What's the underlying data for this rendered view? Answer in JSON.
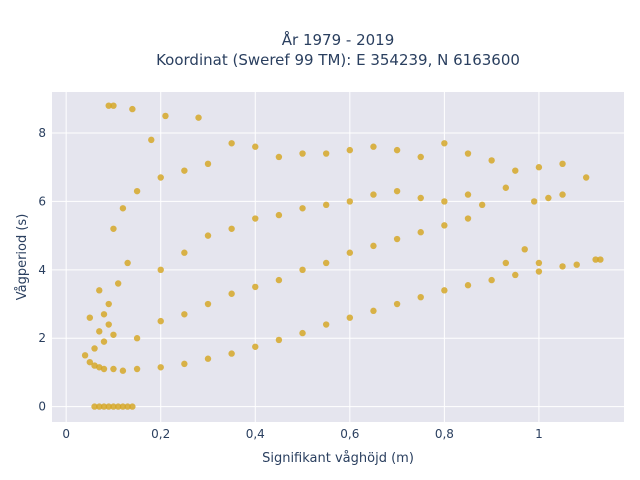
{
  "chart_data": {
    "type": "scatter",
    "title_line1": "År 1979 - 2019",
    "title_line2": "Koordinat (Sweref 99 TM): E 354239, N 6163600",
    "xlabel": "Signifikant våghöjd (m)",
    "ylabel": "Vågperiod (s)",
    "xlim": [
      -0.03,
      1.18
    ],
    "ylim": [
      -0.45,
      9.2
    ],
    "x_ticks": [
      0,
      0.2,
      0.4,
      0.6,
      0.8,
      1
    ],
    "x_tick_labels": [
      "0",
      "0,2",
      "0,4",
      "0,6",
      "0,8",
      "1"
    ],
    "y_ticks": [
      0,
      2,
      4,
      6,
      8
    ],
    "y_tick_labels": [
      "0",
      "2",
      "4",
      "6",
      "8"
    ],
    "grid": true,
    "marker_color": "#d4a521",
    "plot_bgcolor": "#e5e5ee",
    "series": [
      {
        "values_xy": [
          [
            0.04,
            1.5
          ],
          [
            0.05,
            1.3
          ],
          [
            0.06,
            1.2
          ],
          [
            0.07,
            1.15
          ],
          [
            0.08,
            1.1
          ],
          [
            0.1,
            1.1
          ],
          [
            0.12,
            1.05
          ],
          [
            0.15,
            1.1
          ],
          [
            0.2,
            1.15
          ],
          [
            0.25,
            1.25
          ],
          [
            0.3,
            1.4
          ],
          [
            0.35,
            1.55
          ],
          [
            0.4,
            1.75
          ],
          [
            0.45,
            1.95
          ],
          [
            0.5,
            2.15
          ],
          [
            0.55,
            2.4
          ],
          [
            0.6,
            2.6
          ],
          [
            0.65,
            2.8
          ],
          [
            0.7,
            3.0
          ],
          [
            0.75,
            3.2
          ],
          [
            0.8,
            3.4
          ],
          [
            0.85,
            3.55
          ],
          [
            0.9,
            3.7
          ],
          [
            0.95,
            3.85
          ],
          [
            1.0,
            3.95
          ],
          [
            1.05,
            4.1
          ],
          [
            1.08,
            4.15
          ],
          [
            1.12,
            4.3
          ],
          [
            1.13,
            4.3
          ],
          [
            0.06,
            0.0
          ],
          [
            0.07,
            0.0
          ],
          [
            0.08,
            0.0
          ],
          [
            0.09,
            0.0
          ],
          [
            0.1,
            0.0
          ],
          [
            0.11,
            0.0
          ],
          [
            0.12,
            0.0
          ],
          [
            0.13,
            0.0
          ],
          [
            0.14,
            0.0
          ],
          [
            0.09,
            8.8
          ],
          [
            0.1,
            8.8
          ],
          [
            0.14,
            8.7
          ],
          [
            0.21,
            8.5
          ],
          [
            0.28,
            8.45
          ],
          [
            0.18,
            7.8
          ],
          [
            0.35,
            7.7
          ],
          [
            0.4,
            7.6
          ],
          [
            0.45,
            7.3
          ],
          [
            0.5,
            7.4
          ],
          [
            0.55,
            7.4
          ],
          [
            0.6,
            7.5
          ],
          [
            0.65,
            7.6
          ],
          [
            0.7,
            7.5
          ],
          [
            0.75,
            7.3
          ],
          [
            0.8,
            7.7
          ],
          [
            0.85,
            7.4
          ],
          [
            0.9,
            7.2
          ],
          [
            0.95,
            6.9
          ],
          [
            1.0,
            7.0
          ],
          [
            1.05,
            7.1
          ],
          [
            1.1,
            6.7
          ],
          [
            1.02,
            6.1
          ],
          [
            1.05,
            6.2
          ],
          [
            0.99,
            6.0
          ],
          [
            0.93,
            6.4
          ],
          [
            0.88,
            5.9
          ],
          [
            0.97,
            4.6
          ],
          [
            0.93,
            4.2
          ],
          [
            1.0,
            4.2
          ],
          [
            0.1,
            5.2
          ],
          [
            0.12,
            5.8
          ],
          [
            0.15,
            6.3
          ],
          [
            0.2,
            6.7
          ],
          [
            0.25,
            6.9
          ],
          [
            0.3,
            7.1
          ],
          [
            0.13,
            4.2
          ],
          [
            0.11,
            3.6
          ],
          [
            0.09,
            3.0
          ],
          [
            0.08,
            2.7
          ],
          [
            0.09,
            2.4
          ],
          [
            0.1,
            2.1
          ],
          [
            0.07,
            2.2
          ],
          [
            0.08,
            1.9
          ],
          [
            0.06,
            1.7
          ],
          [
            0.05,
            2.6
          ],
          [
            0.07,
            3.4
          ],
          [
            0.15,
            2.0
          ],
          [
            0.2,
            2.5
          ],
          [
            0.25,
            2.7
          ],
          [
            0.3,
            3.0
          ],
          [
            0.35,
            3.3
          ],
          [
            0.4,
            3.5
          ],
          [
            0.45,
            3.7
          ],
          [
            0.5,
            4.0
          ],
          [
            0.55,
            4.2
          ],
          [
            0.6,
            4.5
          ],
          [
            0.65,
            4.7
          ],
          [
            0.7,
            4.9
          ],
          [
            0.75,
            5.1
          ],
          [
            0.8,
            5.3
          ],
          [
            0.85,
            5.5
          ],
          [
            0.2,
            4.0
          ],
          [
            0.25,
            4.5
          ],
          [
            0.3,
            5.0
          ],
          [
            0.35,
            5.2
          ],
          [
            0.4,
            5.5
          ],
          [
            0.45,
            5.6
          ],
          [
            0.5,
            5.8
          ],
          [
            0.55,
            5.9
          ],
          [
            0.6,
            6.0
          ],
          [
            0.65,
            6.2
          ],
          [
            0.7,
            6.3
          ],
          [
            0.75,
            6.1
          ],
          [
            0.8,
            6.0
          ],
          [
            0.85,
            6.2
          ]
        ]
      }
    ]
  }
}
